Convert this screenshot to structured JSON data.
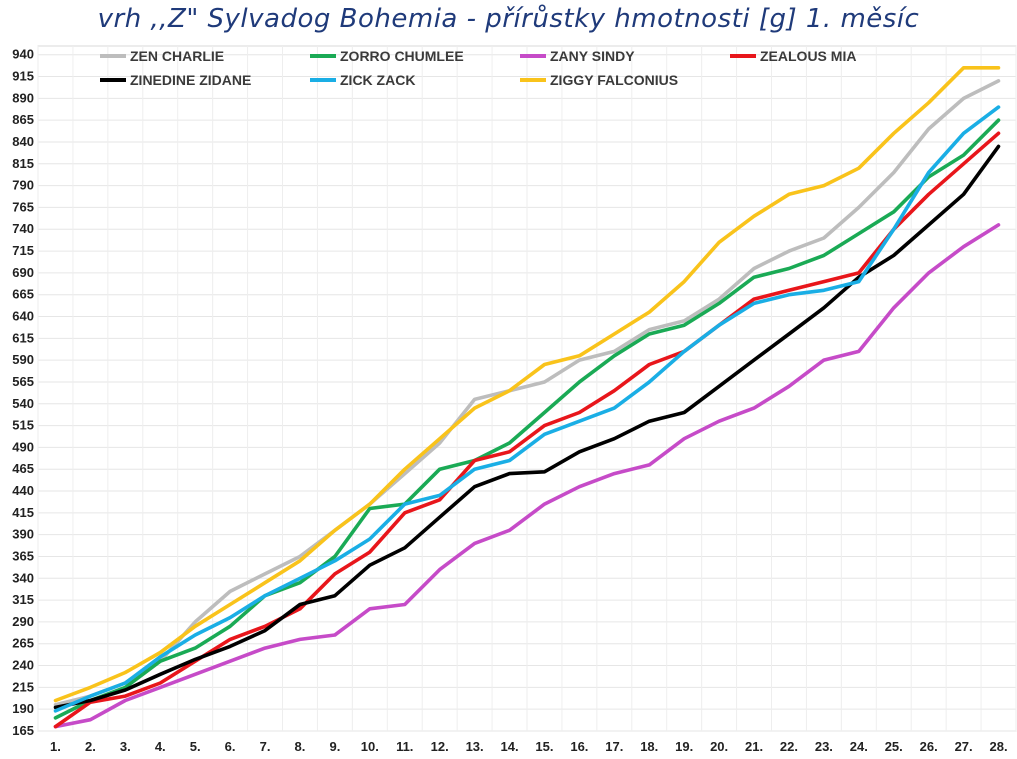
{
  "chart_data": {
    "type": "line",
    "title": "vrh ,,Z\" Sylvadog Bohemia - přírůstky hmotnosti [g] 1. měsíc",
    "xlabel": "",
    "ylabel": "",
    "categories": [
      "1.",
      "2.",
      "3.",
      "4.",
      "5.",
      "6.",
      "7.",
      "8.",
      "9.",
      "10.",
      "11.",
      "12.",
      "13.",
      "14.",
      "15.",
      "16.",
      "17.",
      "18.",
      "19.",
      "20.",
      "21.",
      "22.",
      "23.",
      "24.",
      "25.",
      "26.",
      "27.",
      "28."
    ],
    "y_ticks": [
      165,
      190,
      215,
      240,
      265,
      290,
      315,
      340,
      365,
      390,
      415,
      440,
      465,
      490,
      515,
      540,
      565,
      590,
      615,
      640,
      665,
      690,
      715,
      740,
      765,
      790,
      815,
      840,
      865,
      890,
      915,
      940
    ],
    "ylim": [
      165,
      950
    ],
    "grid": true,
    "legend_position": "top",
    "series": [
      {
        "name": "ZEN CHARLIE",
        "color": "#bdbdbd",
        "values": [
          195,
          205,
          220,
          245,
          290,
          325,
          345,
          365,
          395,
          425,
          460,
          495,
          545,
          555,
          565,
          590,
          600,
          625,
          635,
          660,
          695,
          715,
          730,
          765,
          805,
          855,
          890,
          910
        ]
      },
      {
        "name": "ZORRO CHUMLEE",
        "color": "#1aaa55",
        "values": [
          180,
          200,
          215,
          245,
          260,
          285,
          320,
          335,
          365,
          420,
          425,
          465,
          475,
          495,
          530,
          565,
          595,
          620,
          630,
          655,
          685,
          695,
          710,
          735,
          760,
          800,
          825,
          865
        ]
      },
      {
        "name": "ZANY SINDY",
        "color": "#c64bc8",
        "values": [
          170,
          178,
          200,
          215,
          230,
          245,
          260,
          270,
          275,
          305,
          310,
          350,
          380,
          395,
          425,
          445,
          460,
          470,
          500,
          520,
          535,
          560,
          590,
          600,
          650,
          690,
          720,
          745
        ]
      },
      {
        "name": "ZEALOUS MIA",
        "color": "#e8161b",
        "values": [
          170,
          198,
          205,
          220,
          245,
          270,
          285,
          305,
          345,
          370,
          415,
          430,
          475,
          485,
          515,
          530,
          555,
          585,
          600,
          630,
          660,
          670,
          680,
          690,
          740,
          780,
          815,
          850
        ]
      },
      {
        "name": "ZINEDINE ZIDANE",
        "color": "#000000",
        "values": [
          192,
          200,
          212,
          230,
          247,
          262,
          280,
          310,
          320,
          355,
          375,
          410,
          445,
          460,
          462,
          485,
          500,
          520,
          530,
          560,
          590,
          620,
          650,
          685,
          710,
          745,
          780,
          835
        ]
      },
      {
        "name": "ZICK ZACK",
        "color": "#1aaee5",
        "values": [
          188,
          205,
          220,
          250,
          275,
          295,
          320,
          340,
          360,
          385,
          425,
          435,
          465,
          475,
          505,
          520,
          535,
          565,
          600,
          630,
          655,
          665,
          670,
          680,
          740,
          805,
          850,
          880
        ]
      },
      {
        "name": "ZIGGY FALCONIUS",
        "color": "#f9c31b",
        "values": [
          200,
          215,
          232,
          255,
          285,
          310,
          335,
          360,
          395,
          425,
          465,
          500,
          535,
          555,
          585,
          595,
          620,
          645,
          680,
          725,
          755,
          780,
          790,
          810,
          850,
          885,
          925,
          925
        ]
      }
    ]
  }
}
